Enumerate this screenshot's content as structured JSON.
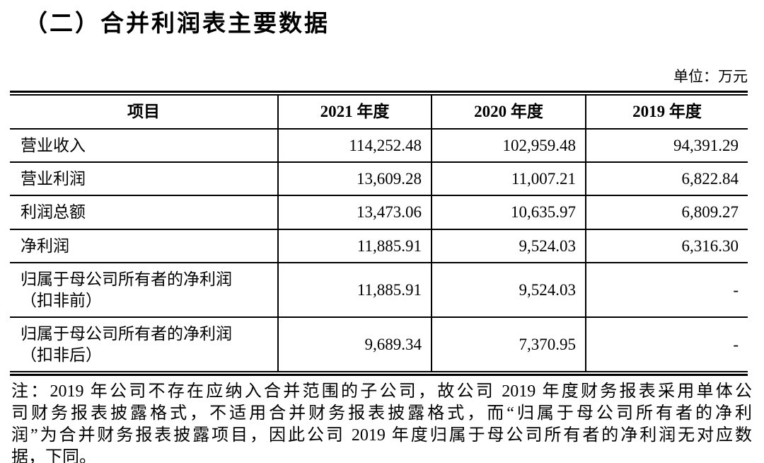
{
  "page": {
    "title": "（二）合并利润表主要数据",
    "unit_label": "单位：万元"
  },
  "table": {
    "columns": [
      "项目",
      "2021 年度",
      "2020 年度",
      "2019 年度"
    ],
    "rows": [
      {
        "label": "营业收入",
        "values": [
          "114,252.48",
          "102,959.48",
          "94,391.29"
        ]
      },
      {
        "label": "营业利润",
        "values": [
          "13,609.28",
          "11,007.21",
          "6,822.84"
        ]
      },
      {
        "label": "利润总额",
        "values": [
          "13,473.06",
          "10,635.97",
          "6,809.27"
        ]
      },
      {
        "label": "净利润",
        "values": [
          "11,885.91",
          "9,524.03",
          "6,316.30"
        ]
      },
      {
        "label": "归属于母公司所有者的净利润",
        "label2": "（扣非前）",
        "values": [
          "11,885.91",
          "9,524.03",
          "-"
        ]
      },
      {
        "label": "归属于母公司所有者的净利润",
        "label2": "（扣非后）",
        "values": [
          "9,689.34",
          "7,370.95",
          "-"
        ]
      }
    ]
  },
  "note": {
    "lines": [
      "注：2019 年公司不存在应纳入合并范围的子公司，故公司 2019 年度财务报表采用单体公",
      "司财务报表披露格式，不适用合并财务报表披露格式，而“归属于母公司所有者的净利",
      "润”为合并财务报表披露项目，因此公司 2019 年度归属于母公司所有者的净利润无对应数",
      "据，下同。"
    ]
  }
}
